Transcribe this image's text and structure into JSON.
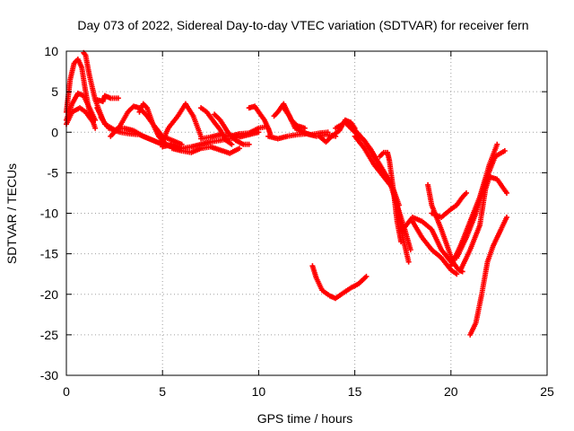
{
  "chart_data": {
    "type": "scatter",
    "title": "Day 073 of 2022, Sidereal Day-to-day VTEC variation (SDTVAR) for receiver fern",
    "xlabel": "GPS time / hours",
    "ylabel": "SDTVAR / TECUs",
    "xlim": [
      0,
      25
    ],
    "ylim": [
      -30,
      10
    ],
    "xticks": [
      0,
      5,
      10,
      15,
      20,
      25
    ],
    "yticks": [
      -30,
      -25,
      -20,
      -15,
      -10,
      -5,
      0,
      5,
      10
    ],
    "xtick_labels": [
      "0",
      "5",
      "10",
      "15",
      "20",
      "25"
    ],
    "ytick_labels": [
      "-30",
      "-25",
      "-20",
      "-15",
      "-10",
      "-5",
      "0",
      "5",
      "10"
    ],
    "grid": true,
    "marker": "plus",
    "color": "#ff0000",
    "series": [
      {
        "x": [
          0,
          0.2,
          0.4,
          0.6,
          0.8,
          1.0,
          1.2,
          1.5
        ],
        "y": [
          2.5,
          6.5,
          8.5,
          9.0,
          8.0,
          5.0,
          2.5,
          0.5
        ]
      },
      {
        "x": [
          0.9,
          1.0,
          1.2,
          1.5,
          1.9
        ],
        "y": [
          9.8,
          9.5,
          7.0,
          4.0,
          1.5
        ]
      },
      {
        "x": [
          0,
          0.3,
          0.6,
          0.9,
          1.2,
          1.5
        ],
        "y": [
          1.5,
          3.5,
          4.8,
          4.5,
          3.0,
          1.5
        ]
      },
      {
        "x": [
          0,
          0.3,
          0.7,
          1.0,
          1.4
        ],
        "y": [
          1.0,
          2.5,
          3.0,
          2.5,
          1.2
        ]
      },
      {
        "x": [
          1.6,
          1.9,
          2.0,
          2.3,
          2.7
        ],
        "y": [
          4.0,
          3.8,
          4.5,
          4.2,
          4.2
        ]
      },
      {
        "x": [
          1.6,
          2.0,
          2.5,
          3.0,
          3.5,
          4.0,
          4.5,
          5.0,
          5.5
        ],
        "y": [
          3.0,
          1.0,
          0.3,
          0.5,
          0.2,
          -0.5,
          -1.0,
          -1.5,
          -1.8
        ]
      },
      {
        "x": [
          1.8,
          2.2,
          2.8,
          3.3,
          3.8,
          4.3,
          4.9
        ],
        "y": [
          1.8,
          0.5,
          0.0,
          -0.2,
          -0.3,
          -0.8,
          -1.4
        ]
      },
      {
        "x": [
          2.3,
          2.8,
          3.2,
          3.5,
          3.8,
          4.2,
          4.5,
          5.0,
          5.5,
          6.0
        ],
        "y": [
          -0.5,
          0.8,
          2.5,
          3.2,
          3.0,
          2.0,
          1.0,
          -0.5,
          -1.0,
          -1.5
        ]
      },
      {
        "x": [
          3.8,
          4.0,
          4.2,
          4.5,
          4.8,
          5.2,
          5.6,
          6.0
        ],
        "y": [
          2.5,
          3.5,
          3.0,
          1.0,
          -0.5,
          -1.5,
          -1.8,
          -2.0
        ]
      },
      {
        "x": [
          5.0,
          5.3,
          5.8,
          6.2,
          6.6,
          7.0
        ],
        "y": [
          -1.2,
          0.5,
          2.0,
          3.5,
          2.0,
          -0.5
        ]
      },
      {
        "x": [
          5.0,
          5.5,
          6.0,
          6.5,
          7.0,
          7.5,
          8.0
        ],
        "y": [
          -1.8,
          -1.5,
          -2.0,
          -1.8,
          -1.5,
          -1.2,
          -1.0
        ]
      },
      {
        "x": [
          5.5,
          6.0,
          6.5,
          7.0,
          7.5,
          8.0,
          8.5,
          9.0
        ],
        "y": [
          -2.0,
          -2.3,
          -2.5,
          -2.0,
          -1.8,
          -2.2,
          -2.6,
          -2.0
        ]
      },
      {
        "x": [
          7.0,
          7.3,
          7.7,
          8.0,
          8.3,
          8.6
        ],
        "y": [
          3.0,
          2.5,
          1.2,
          0.3,
          -1.0,
          -1.5
        ]
      },
      {
        "x": [
          7.7,
          8.0,
          8.4,
          8.8,
          9.2,
          9.5
        ],
        "y": [
          2.2,
          1.5,
          0.0,
          -1.0,
          -1.5,
          -1.5
        ]
      },
      {
        "x": [
          7.0,
          7.5,
          8.0,
          8.5,
          9.0,
          9.5,
          10.0,
          10.4
        ],
        "y": [
          -0.8,
          -0.6,
          -0.3,
          -0.5,
          -0.2,
          -0.1,
          0.5,
          0.7
        ]
      },
      {
        "x": [
          8.0,
          8.5,
          9.0,
          9.5,
          10.0
        ],
        "y": [
          -1.0,
          -0.8,
          -0.6,
          -0.3,
          0.0
        ]
      },
      {
        "x": [
          9.5,
          9.8,
          10.0,
          10.3,
          10.5,
          10.6
        ],
        "y": [
          3.0,
          3.2,
          2.5,
          1.5,
          0.5,
          -0.2
        ]
      },
      {
        "x": [
          10.8,
          11.0,
          11.3,
          11.5,
          11.7,
          12.0,
          12.4
        ],
        "y": [
          2.0,
          2.5,
          3.5,
          2.5,
          1.5,
          0.8,
          0.5
        ]
      },
      {
        "x": [
          11.3,
          11.6,
          11.9,
          12.3,
          12.7,
          13.2,
          13.6
        ],
        "y": [
          3.0,
          2.0,
          0.5,
          0.0,
          -0.3,
          -0.1,
          0.0
        ]
      },
      {
        "x": [
          10.5,
          11.0,
          11.5,
          12.0,
          12.5,
          13.0,
          13.5,
          14.0
        ],
        "y": [
          -0.5,
          -0.8,
          -0.5,
          -0.3,
          -0.2,
          -0.5,
          -0.3,
          -0.5
        ]
      },
      {
        "x": [
          13.2,
          13.5,
          13.8,
          14.2,
          14.5,
          14.8,
          15.0
        ],
        "y": [
          -0.6,
          -1.2,
          -0.5,
          0.2,
          1.5,
          1.2,
          0.5
        ]
      },
      {
        "x": [
          14.0,
          14.5,
          15.0,
          15.5,
          16.0,
          16.5,
          17.0,
          17.3
        ],
        "y": [
          0.5,
          1.2,
          0.0,
          -1.0,
          -3.0,
          -5.0,
          -7.0,
          -9.0
        ]
      },
      {
        "x": [
          14.8,
          15.3,
          15.8,
          16.3,
          16.8,
          17.2,
          17.6,
          17.9
        ],
        "y": [
          0.8,
          -0.5,
          -2.0,
          -4.0,
          -6.0,
          -9.0,
          -12.0,
          -14.5
        ]
      },
      {
        "x": [
          15.0,
          15.5,
          16.0,
          16.5,
          17.0,
          17.3,
          17.5,
          17.8
        ],
        "y": [
          -0.5,
          -2.0,
          -4.0,
          -5.5,
          -7.0,
          -10.0,
          -13.0,
          -16.0
        ]
      },
      {
        "x": [
          16.3,
          16.5,
          16.7,
          16.8,
          17.0,
          17.2,
          17.4
        ],
        "y": [
          -3.0,
          -2.5,
          -2.5,
          -3.5,
          -7.0,
          -11.0,
          -13.5
        ]
      },
      {
        "x": [
          17.5,
          18.0,
          18.5,
          19.0,
          19.5,
          20.0
        ],
        "y": [
          -12.0,
          -10.5,
          -11.0,
          -12.0,
          -14.5,
          -16.0
        ]
      },
      {
        "x": [
          18.0,
          18.5,
          19.0,
          19.5,
          20.0,
          20.3
        ],
        "y": [
          -11.0,
          -13.0,
          -14.5,
          -15.5,
          -17.0,
          -17.5
        ]
      },
      {
        "x": [
          18.8,
          19.0,
          19.5,
          19.8,
          20.1,
          20.4,
          20.6
        ],
        "y": [
          -6.5,
          -9.0,
          -12.0,
          -14.0,
          -16.0,
          -17.0,
          -17.2
        ]
      },
      {
        "x": [
          19.0,
          19.5,
          20.0,
          20.3,
          20.6,
          20.8
        ],
        "y": [
          -10.0,
          -10.5,
          -9.5,
          -9.0,
          -8.0,
          -7.5
        ]
      },
      {
        "x": [
          20.0,
          20.5,
          21.0,
          21.5,
          22.0,
          22.4
        ],
        "y": [
          -16.5,
          -14.0,
          -11.0,
          -8.0,
          -4.0,
          -1.5
        ]
      },
      {
        "x": [
          20.3,
          20.8,
          21.3,
          21.8,
          22.3,
          22.8
        ],
        "y": [
          -15.5,
          -13.0,
          -10.0,
          -6.0,
          -3.0,
          -2.3
        ]
      },
      {
        "x": [
          20.5,
          21.0,
          21.5,
          21.8,
          22.0,
          22.4,
          22.9
        ],
        "y": [
          -17.0,
          -14.5,
          -11.5,
          -7.0,
          -5.5,
          -5.8,
          -7.5
        ]
      },
      {
        "x": [
          21.0,
          21.3,
          21.6,
          21.9,
          22.2,
          22.6,
          22.9
        ],
        "y": [
          -25.0,
          -23.5,
          -20.0,
          -16.0,
          -14.0,
          -12.0,
          -10.5
        ]
      },
      {
        "x": [
          12.8,
          13.0,
          13.3,
          13.7,
          14.0,
          14.3,
          14.8,
          15.2,
          15.6
        ],
        "y": [
          -16.5,
          -18.0,
          -19.5,
          -20.2,
          -20.5,
          -20.0,
          -19.2,
          -18.7,
          -17.8
        ]
      }
    ]
  }
}
